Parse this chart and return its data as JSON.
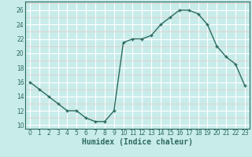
{
  "x": [
    0,
    1,
    2,
    3,
    4,
    5,
    6,
    7,
    8,
    9,
    10,
    11,
    12,
    13,
    14,
    15,
    16,
    17,
    18,
    19,
    20,
    21,
    22,
    23
  ],
  "y": [
    16,
    15,
    14,
    13,
    12,
    12,
    11,
    10.5,
    10.5,
    12,
    21.5,
    22,
    22,
    22.5,
    24,
    25,
    26,
    26,
    25.5,
    24,
    21,
    19.5,
    18.5,
    15.5
  ],
  "line_color": "#2d6b5e",
  "bg_color": "#c8ecea",
  "grid_major_color": "#ffffff",
  "grid_minor_color": "#e8c8c8",
  "xlabel": "Humidex (Indice chaleur)",
  "xlim": [
    -0.5,
    23.5
  ],
  "ylim": [
    9.5,
    27.2
  ],
  "yticks": [
    10,
    12,
    14,
    16,
    18,
    20,
    22,
    24,
    26
  ],
  "xticks": [
    0,
    1,
    2,
    3,
    4,
    5,
    6,
    7,
    8,
    9,
    10,
    11,
    12,
    13,
    14,
    15,
    16,
    17,
    18,
    19,
    20,
    21,
    22,
    23
  ],
  "tick_fontsize": 5.5,
  "label_fontsize": 7
}
